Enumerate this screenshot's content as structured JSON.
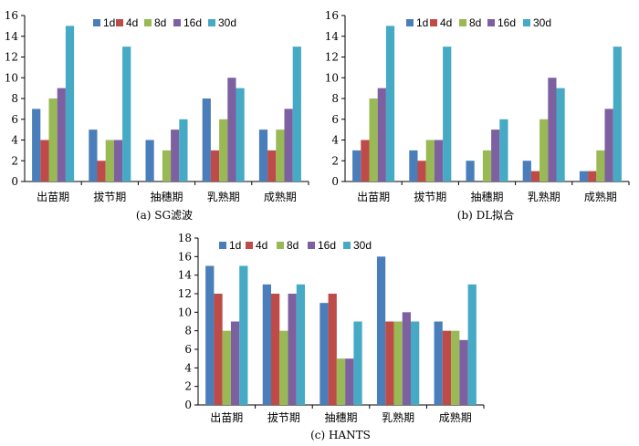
{
  "colors": {
    "1d": "#4a7ebb",
    "4d": "#be4b48",
    "8d": "#98b954",
    "16d": "#7d60a0",
    "30d": "#46aac5"
  },
  "chart_data": [
    {
      "type": "bar",
      "caption": "(a) SG滤波",
      "categories": [
        "出苗期",
        "拔节期",
        "抽穗期",
        "乳熟期",
        "成熟期"
      ],
      "series": [
        {
          "name": "1d",
          "values": [
            7,
            5,
            4,
            8,
            5
          ]
        },
        {
          "name": "4d",
          "values": [
            4,
            2,
            0,
            3,
            3
          ]
        },
        {
          "name": "8d",
          "values": [
            8,
            4,
            3,
            6,
            5
          ]
        },
        {
          "name": "16d",
          "values": [
            9,
            4,
            5,
            10,
            7
          ]
        },
        {
          "name": "30d",
          "values": [
            15,
            13,
            6,
            9,
            13
          ]
        }
      ],
      "ylim": [
        0,
        16
      ],
      "yticks": [
        "0",
        "2",
        "4",
        "6",
        "8",
        "10",
        "12",
        "14",
        "16"
      ],
      "legend": "top"
    },
    {
      "type": "bar",
      "caption": "(b) DL拟合",
      "categories": [
        "出苗期",
        "拔节期",
        "抽穗期",
        "乳熟期",
        "成熟期"
      ],
      "series": [
        {
          "name": "1d",
          "values": [
            3,
            3,
            2,
            2,
            1
          ]
        },
        {
          "name": "4d",
          "values": [
            4,
            2,
            0,
            1,
            1
          ]
        },
        {
          "name": "8d",
          "values": [
            8,
            4,
            3,
            6,
            3
          ]
        },
        {
          "name": "16d",
          "values": [
            9,
            4,
            5,
            10,
            7
          ]
        },
        {
          "name": "30d",
          "values": [
            15,
            13,
            6,
            9,
            13
          ]
        }
      ],
      "ylim": [
        0,
        16
      ],
      "yticks": [
        "0",
        "2",
        "4",
        "6",
        "8",
        "10",
        "12",
        "14",
        "16"
      ],
      "legend": "top"
    },
    {
      "type": "bar",
      "caption": "(c) HANTS",
      "categories": [
        "出苗期",
        "拔节期",
        "抽穗期",
        "乳熟期",
        "成熟期"
      ],
      "series": [
        {
          "name": "1d",
          "values": [
            15,
            13,
            11,
            16,
            9
          ]
        },
        {
          "name": "4d",
          "values": [
            12,
            12,
            12,
            9,
            8
          ]
        },
        {
          "name": "8d",
          "values": [
            8,
            8,
            5,
            9,
            8
          ]
        },
        {
          "name": "16d",
          "values": [
            9,
            12,
            5,
            10,
            7
          ]
        },
        {
          "name": "30d",
          "values": [
            15,
            13,
            9,
            9,
            13
          ]
        }
      ],
      "ylim": [
        0,
        18
      ],
      "yticks": [
        "0",
        "2",
        "4",
        "6",
        "8",
        "10",
        "12",
        "14",
        "16",
        "18"
      ],
      "legend": "top"
    }
  ]
}
